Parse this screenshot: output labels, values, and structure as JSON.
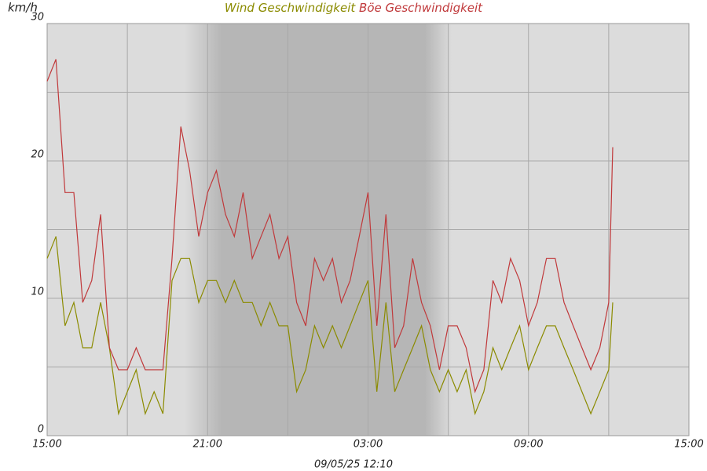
{
  "chart_data": {
    "type": "line",
    "title_parts": [
      "Wind Geschwindigkeit",
      "Böe Geschwindigkeit"
    ],
    "ylabel": "km/h",
    "footer": "09/05/25 12:10",
    "xlim": [
      0,
      24
    ],
    "xticks": [
      {
        "value": 0,
        "label": "15:00"
      },
      {
        "value": 3,
        "label": null
      },
      {
        "value": 6,
        "label": "21:00"
      },
      {
        "value": 9,
        "label": null
      },
      {
        "value": 12,
        "label": "03:00"
      },
      {
        "value": 15,
        "label": null
      },
      {
        "value": 18,
        "label": "09:00"
      },
      {
        "value": 21,
        "label": null
      },
      {
        "value": 24,
        "label": "15:00"
      }
    ],
    "ylim": [
      0,
      30
    ],
    "yticks": [
      0,
      {
        "value": 5,
        "label": null
      },
      10,
      {
        "value": 15,
        "label": null
      },
      20,
      {
        "value": 25,
        "label": null
      },
      30
    ],
    "grid": true,
    "x": [
      0,
      0.33,
      0.67,
      1,
      1.33,
      1.67,
      2,
      2.33,
      2.67,
      3,
      3.33,
      3.67,
      4,
      4.33,
      4.67,
      5,
      5.33,
      5.67,
      6,
      6.33,
      6.67,
      7,
      7.33,
      7.67,
      8,
      8.33,
      8.67,
      9,
      9.33,
      9.67,
      10,
      10.33,
      10.67,
      11,
      11.33,
      11.67,
      12,
      12.33,
      12.67,
      13,
      13.33,
      13.67,
      14,
      14.33,
      14.67,
      15,
      15.33,
      15.67,
      16,
      16.33,
      16.67,
      17,
      17.33,
      17.67,
      18,
      18.33,
      18.67,
      19,
      19.33,
      19.67,
      20,
      20.33,
      20.67,
      21,
      21.15
    ],
    "series": [
      {
        "name": "Wind Geschwindigkeit",
        "color": "#8b8b00",
        "values": [
          12.9,
          14.5,
          8.0,
          9.7,
          6.4,
          6.4,
          9.7,
          6.4,
          1.6,
          3.2,
          4.8,
          1.6,
          3.2,
          1.6,
          11.3,
          12.9,
          12.9,
          9.7,
          11.3,
          11.3,
          9.7,
          11.3,
          9.7,
          9.7,
          8.0,
          9.7,
          8.0,
          8.0,
          3.2,
          4.8,
          8.0,
          6.4,
          8.0,
          6.4,
          8.0,
          9.7,
          11.3,
          3.2,
          9.7,
          3.2,
          4.8,
          6.4,
          8.0,
          4.8,
          3.2,
          4.8,
          3.2,
          4.8,
          1.6,
          3.2,
          6.4,
          4.8,
          6.4,
          8.0,
          4.8,
          6.4,
          8.0,
          8.0,
          6.4,
          4.8,
          3.2,
          1.6,
          3.2,
          4.8,
          9.7
        ]
      },
      {
        "name": "Böe Geschwindigkeit",
        "color": "#c0393b",
        "values": [
          25.8,
          27.4,
          17.7,
          17.7,
          9.7,
          11.3,
          16.1,
          6.4,
          4.8,
          4.8,
          6.4,
          4.8,
          4.8,
          4.8,
          12.9,
          22.5,
          19.3,
          14.5,
          17.7,
          19.3,
          16.1,
          14.5,
          17.7,
          12.9,
          14.5,
          16.1,
          12.9,
          14.5,
          9.7,
          8.0,
          12.9,
          11.3,
          12.9,
          9.7,
          11.3,
          14.5,
          17.7,
          8.0,
          16.1,
          6.4,
          8.0,
          12.9,
          9.7,
          8.0,
          4.8,
          8.0,
          8.0,
          6.4,
          3.2,
          4.8,
          11.3,
          9.7,
          12.9,
          11.3,
          8.0,
          9.7,
          12.9,
          12.9,
          9.7,
          8.0,
          6.4,
          4.8,
          6.4,
          9.7,
          21.0
        ]
      }
    ]
  }
}
